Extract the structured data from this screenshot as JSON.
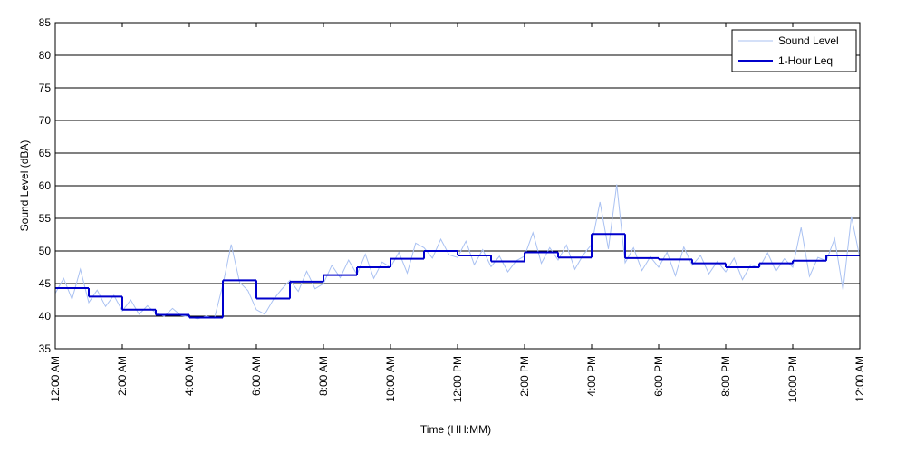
{
  "chart_data": {
    "type": "line",
    "x_label": "Time (HH:MM)",
    "y_label": "Sound Level (dBA)",
    "xlim": [
      0,
      24
    ],
    "ylim": [
      35,
      85
    ],
    "xticks": [
      {
        "value": 0,
        "label": "12:00 AM"
      },
      {
        "value": 2,
        "label": "2:00 AM"
      },
      {
        "value": 4,
        "label": "4:00 AM"
      },
      {
        "value": 6,
        "label": "6:00 AM"
      },
      {
        "value": 8,
        "label": "8:00 AM"
      },
      {
        "value": 10,
        "label": "10:00 AM"
      },
      {
        "value": 12,
        "label": "12:00 PM"
      },
      {
        "value": 14,
        "label": "2:00 PM"
      },
      {
        "value": 16,
        "label": "4:00 PM"
      },
      {
        "value": 18,
        "label": "6:00 PM"
      },
      {
        "value": 20,
        "label": "8:00 PM"
      },
      {
        "value": 22,
        "label": "10:00 PM"
      },
      {
        "value": 24,
        "label": "12:00 AM"
      }
    ],
    "yticks": [
      35,
      40,
      45,
      50,
      55,
      60,
      65,
      70,
      75,
      80,
      85
    ],
    "grid": true,
    "legend": "upper right",
    "series": [
      {
        "name": "Sound Level",
        "color": "#a9c1f2",
        "style": "line",
        "x": [
          0,
          0.25,
          0.5,
          0.75,
          1,
          1.25,
          1.5,
          1.75,
          2,
          2.25,
          2.5,
          2.75,
          3,
          3.25,
          3.5,
          3.75,
          4,
          4.25,
          4.5,
          4.75,
          5,
          5.25,
          5.5,
          5.75,
          6,
          6.25,
          6.5,
          6.75,
          7,
          7.25,
          7.5,
          7.75,
          8,
          8.25,
          8.5,
          8.75,
          9,
          9.25,
          9.5,
          9.75,
          10,
          10.25,
          10.5,
          10.75,
          11,
          11.25,
          11.5,
          11.75,
          12,
          12.25,
          12.5,
          12.75,
          13,
          13.25,
          13.5,
          13.75,
          14,
          14.25,
          14.5,
          14.75,
          15,
          15.25,
          15.5,
          15.75,
          16,
          16.25,
          16.5,
          16.75,
          17,
          17.25,
          17.5,
          17.75,
          18,
          18.25,
          18.5,
          18.75,
          19,
          19.25,
          19.5,
          19.75,
          20,
          20.25,
          20.5,
          20.75,
          21,
          21.25,
          21.5,
          21.75,
          22,
          22.25,
          22.5,
          22.75,
          23,
          23.25,
          23.5,
          23.75,
          24
        ],
        "values": [
          43.5,
          45.8,
          42.6,
          47.2,
          42.1,
          44.0,
          41.5,
          43.2,
          40.8,
          42.5,
          40.3,
          41.6,
          40.5,
          40.0,
          41.2,
          40.1,
          39.9,
          39.6,
          40.0,
          39.7,
          44.8,
          51.0,
          45.2,
          43.9,
          41.0,
          40.3,
          42.5,
          44.1,
          45.5,
          43.8,
          46.9,
          44.2,
          45.0,
          47.8,
          45.9,
          48.6,
          46.4,
          49.5,
          45.8,
          48.3,
          47.5,
          49.8,
          46.6,
          51.2,
          50.5,
          48.9,
          51.8,
          49.4,
          49.0,
          51.5,
          47.9,
          50.2,
          47.6,
          49.2,
          46.8,
          48.5,
          49.2,
          52.8,
          48.1,
          50.5,
          48.6,
          50.9,
          47.2,
          49.4,
          51.0,
          57.5,
          50.3,
          60.2,
          48.2,
          50.5,
          47.0,
          49.1,
          47.5,
          49.8,
          46.2,
          50.6,
          47.8,
          49.3,
          46.5,
          48.4,
          46.8,
          48.9,
          45.6,
          47.9,
          47.4,
          49.7,
          46.9,
          48.8,
          47.5,
          53.6,
          46.1,
          49.0,
          48.5,
          51.9,
          44.0,
          55.3,
          49.0
        ]
      },
      {
        "name": "1-Hour Leq",
        "color": "#0000cc",
        "style": "step",
        "x": [
          0,
          1,
          2,
          3,
          4,
          5,
          6,
          7,
          8,
          9,
          10,
          11,
          12,
          13,
          14,
          15,
          16,
          17,
          18,
          19,
          20,
          21,
          22,
          23
        ],
        "values": [
          44.3,
          43.0,
          41.0,
          40.2,
          39.8,
          45.5,
          42.7,
          45.3,
          46.3,
          47.5,
          48.8,
          50.0,
          49.3,
          48.4,
          49.8,
          49.0,
          52.6,
          48.9,
          48.7,
          48.1,
          47.5,
          48.1,
          48.5,
          49.3
        ]
      }
    ]
  }
}
